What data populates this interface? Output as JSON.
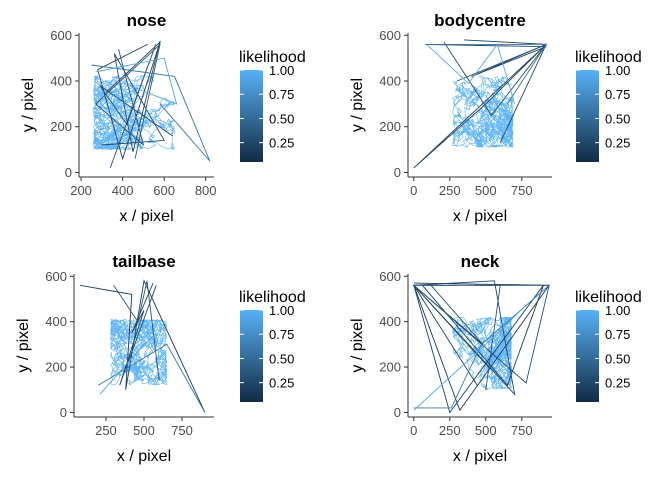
{
  "chart_data": [
    {
      "type": "line",
      "title": "nose",
      "xlabel": "x / pixel",
      "ylabel": "y / pixel",
      "xlim": [
        190,
        840
      ],
      "ylim": [
        -20,
        610
      ],
      "xticks": [
        200,
        400,
        600,
        800
      ],
      "yticks": [
        0,
        200,
        400,
        600
      ],
      "legend": {
        "title": "likelihood",
        "position": "right",
        "breaks": [
          1.0,
          0.75,
          0.5,
          0.25
        ],
        "range": [
          0.05,
          1.0
        ]
      },
      "arena": {
        "x": [
          260,
          650
        ],
        "y": [
          100,
          425
        ]
      },
      "tracks": [
        {
          "likelihood": 0.15,
          "points": [
            [
              320,
              350
            ],
            [
              580,
              570
            ],
            [
              400,
              60
            ],
            [
              280,
              450
            ],
            [
              520,
              560
            ]
          ]
        },
        {
          "likelihood": 0.2,
          "points": [
            [
              580,
              575
            ],
            [
              450,
              90
            ],
            [
              360,
              520
            ],
            [
              600,
              140
            ],
            [
              300,
              120
            ]
          ]
        },
        {
          "likelihood": 0.25,
          "points": [
            [
              340,
              20
            ],
            [
              560,
              560
            ],
            [
              420,
              210
            ],
            [
              290,
              380
            ],
            [
              640,
              160
            ]
          ]
        },
        {
          "likelihood": 0.3,
          "points": [
            [
              380,
              540
            ],
            [
              500,
              120
            ],
            [
              270,
              300
            ],
            [
              580,
              560
            ],
            [
              460,
              60
            ]
          ]
        },
        {
          "likelihood": 0.55,
          "points": [
            [
              250,
              470
            ],
            [
              650,
              420
            ],
            [
              820,
              50
            ],
            [
              580,
              300
            ]
          ]
        },
        {
          "likelihood": 0.9,
          "points": [
            [
              270,
              440
            ],
            [
              600,
              500
            ],
            [
              660,
              300
            ],
            [
              430,
              380
            ]
          ]
        }
      ]
    },
    {
      "type": "line",
      "title": "bodycentre",
      "xlabel": "x / pixel",
      "ylabel": "y / pixel",
      "xlim": [
        -40,
        960
      ],
      "ylim": [
        -20,
        610
      ],
      "xticks": [
        0,
        250,
        500,
        750
      ],
      "yticks": [
        0,
        200,
        400,
        600
      ],
      "legend": {
        "title": "likelihood",
        "position": "right",
        "breaks": [
          1.0,
          0.75,
          0.5,
          0.25
        ],
        "range": [
          0.05,
          1.0
        ]
      },
      "arena": {
        "x": [
          270,
          690
        ],
        "y": [
          110,
          420
        ]
      },
      "tracks": [
        {
          "likelihood": 0.15,
          "points": [
            [
              920,
              560
            ],
            [
              0,
              20
            ],
            [
              500,
              300
            ],
            [
              920,
              560
            ],
            [
              350,
              580
            ]
          ]
        },
        {
          "likelihood": 0.2,
          "points": [
            [
              80,
              560
            ],
            [
              920,
              550
            ],
            [
              400,
              420
            ],
            [
              920,
              560
            ],
            [
              600,
              130
            ]
          ]
        },
        {
          "likelihood": 0.3,
          "points": [
            [
              210,
              570
            ],
            [
              540,
              250
            ],
            [
              920,
              560
            ],
            [
              300,
              400
            ]
          ]
        },
        {
          "likelihood": 0.55,
          "points": [
            [
              100,
              560
            ],
            [
              920,
              560
            ],
            [
              650,
              300
            ]
          ]
        },
        {
          "likelihood": 0.95,
          "points": [
            [
              90,
              560
            ],
            [
              380,
              390
            ],
            [
              580,
              560
            ],
            [
              700,
              300
            ]
          ]
        }
      ]
    },
    {
      "type": "line",
      "title": "tailbase",
      "xlabel": "x / pixel",
      "ylabel": "y / pixel",
      "xlim": [
        40,
        960
      ],
      "ylim": [
        -20,
        610
      ],
      "xticks": [
        250,
        500,
        750
      ],
      "yticks": [
        0,
        200,
        400,
        600
      ],
      "legend": {
        "title": "likelihood",
        "position": "right",
        "breaks": [
          1.0,
          0.75,
          0.5,
          0.25
        ],
        "range": [
          0.05,
          1.0
        ]
      },
      "arena": {
        "x": [
          280,
          650
        ],
        "y": [
          120,
          410
        ]
      },
      "tracks": [
        {
          "likelihood": 0.12,
          "points": [
            [
              80,
              560
            ],
            [
              420,
              520
            ],
            [
              380,
              100
            ],
            [
              500,
              580
            ],
            [
              900,
              0
            ]
          ]
        },
        {
          "likelihood": 0.2,
          "points": [
            [
              560,
              570
            ],
            [
              420,
              350
            ],
            [
              500,
              450
            ],
            [
              340,
              120
            ],
            [
              580,
              560
            ]
          ]
        },
        {
          "likelihood": 0.3,
          "points": [
            [
              300,
              560
            ],
            [
              460,
              400
            ],
            [
              520,
              580
            ],
            [
              600,
              140
            ]
          ]
        },
        {
          "likelihood": 0.55,
          "points": [
            [
              200,
              120
            ],
            [
              650,
              300
            ],
            [
              900,
              0
            ]
          ]
        },
        {
          "likelihood": 0.9,
          "points": [
            [
              210,
              80
            ],
            [
              500,
              300
            ],
            [
              640,
              380
            ]
          ]
        }
      ]
    },
    {
      "type": "line",
      "title": "neck",
      "xlabel": "x / pixel",
      "ylabel": "y / pixel",
      "xlim": [
        -40,
        960
      ],
      "ylim": [
        -20,
        610
      ],
      "xticks": [
        0,
        250,
        500,
        750
      ],
      "yticks": [
        0,
        200,
        400,
        600
      ],
      "legend": {
        "title": "likelihood",
        "position": "right",
        "breaks": [
          1.0,
          0.75,
          0.5,
          0.25
        ],
        "range": [
          0.05,
          1.0
        ]
      },
      "arena": {
        "x": [
          270,
          680
        ],
        "y": [
          100,
          420
        ]
      },
      "tracks": [
        {
          "likelihood": 0.1,
          "points": [
            [
              0,
              570
            ],
            [
              940,
              560
            ],
            [
              320,
              10
            ],
            [
              0,
              560
            ],
            [
              520,
              200
            ]
          ]
        },
        {
          "likelihood": 0.15,
          "points": [
            [
              60,
              560
            ],
            [
              650,
              120
            ],
            [
              900,
              560
            ],
            [
              250,
              0
            ],
            [
              0,
              560
            ]
          ]
        },
        {
          "likelihood": 0.2,
          "points": [
            [
              0,
              560
            ],
            [
              700,
              80
            ],
            [
              560,
              580
            ],
            [
              0,
              560
            ],
            [
              440,
              120
            ]
          ]
        },
        {
          "likelihood": 0.25,
          "points": [
            [
              300,
              560
            ],
            [
              0,
              560
            ],
            [
              780,
              130
            ],
            [
              940,
              560
            ],
            [
              420,
              560
            ]
          ]
        },
        {
          "likelihood": 0.3,
          "points": [
            [
              120,
              560
            ],
            [
              480,
              300
            ],
            [
              0,
              560
            ],
            [
              600,
              560
            ],
            [
              500,
              100
            ]
          ]
        },
        {
          "likelihood": 0.6,
          "points": [
            [
              0,
              20
            ],
            [
              260,
              20
            ],
            [
              470,
              300
            ],
            [
              940,
              560
            ]
          ]
        },
        {
          "likelihood": 0.9,
          "points": [
            [
              0,
              10
            ],
            [
              500,
              300
            ],
            [
              760,
              460
            ]
          ]
        }
      ]
    }
  ]
}
